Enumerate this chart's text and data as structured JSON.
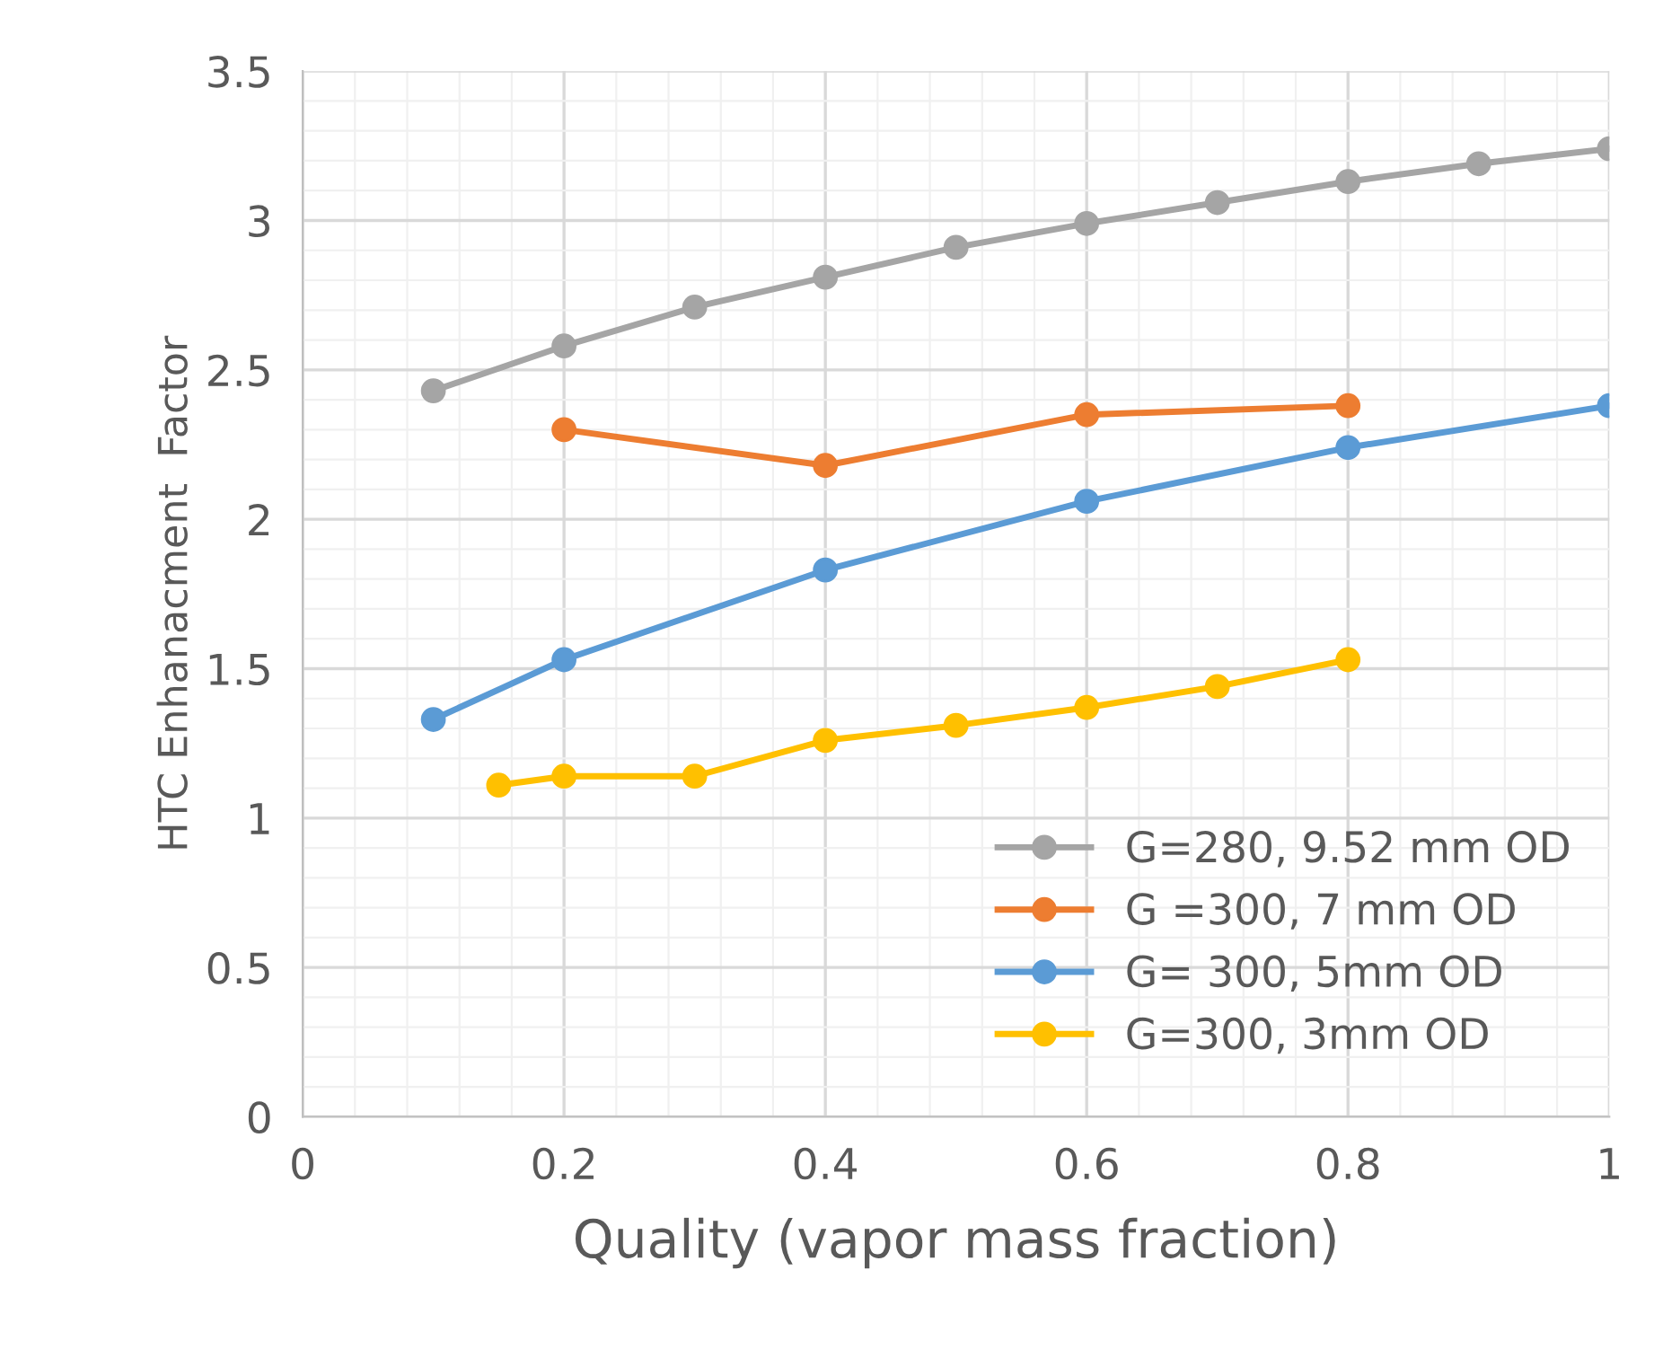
{
  "chart_data": {
    "type": "line",
    "xlabel": "Quality (vapor mass fraction)",
    "ylabel": "HTC Enhanacment  Factor",
    "xlim": [
      0,
      1
    ],
    "xticks": [
      0,
      0.2,
      0.4,
      0.6,
      0.8,
      1
    ],
    "ylim": [
      0,
      3.5
    ],
    "yticks": [
      0,
      0.5,
      1,
      1.5,
      2,
      2.5,
      3,
      3.5
    ],
    "grid": true,
    "legend": "bottom right",
    "marker": "circle",
    "line_style": "solid",
    "series": [
      {
        "name": "G=280, 9.52 mm OD",
        "color": "#a5a5a5",
        "x": [
          0.1,
          0.2,
          0.3,
          0.4,
          0.5,
          0.6,
          0.7,
          0.8,
          0.9,
          1.0
        ],
        "values": [
          2.43,
          2.58,
          2.71,
          2.81,
          2.91,
          2.99,
          3.06,
          3.13,
          3.19,
          3.24
        ]
      },
      {
        "name": "G =300, 7 mm OD",
        "color": "#ed7d31",
        "x": [
          0.2,
          0.4,
          0.6,
          0.8
        ],
        "values": [
          2.3,
          2.18,
          2.35,
          2.38
        ]
      },
      {
        "name": "G= 300, 5mm OD",
        "color": "#5b9bd5",
        "x": [
          0.1,
          0.2,
          0.4,
          0.6,
          0.8,
          1.0
        ],
        "values": [
          1.33,
          1.53,
          1.83,
          2.06,
          2.24,
          2.38
        ]
      },
      {
        "name": "G=300, 3mm OD",
        "color": "#ffc000",
        "x": [
          0.15,
          0.2,
          0.3,
          0.4,
          0.5,
          0.6,
          0.7,
          0.8
        ],
        "values": [
          1.11,
          1.14,
          1.14,
          1.26,
          1.31,
          1.37,
          1.44,
          1.53
        ]
      }
    ]
  }
}
